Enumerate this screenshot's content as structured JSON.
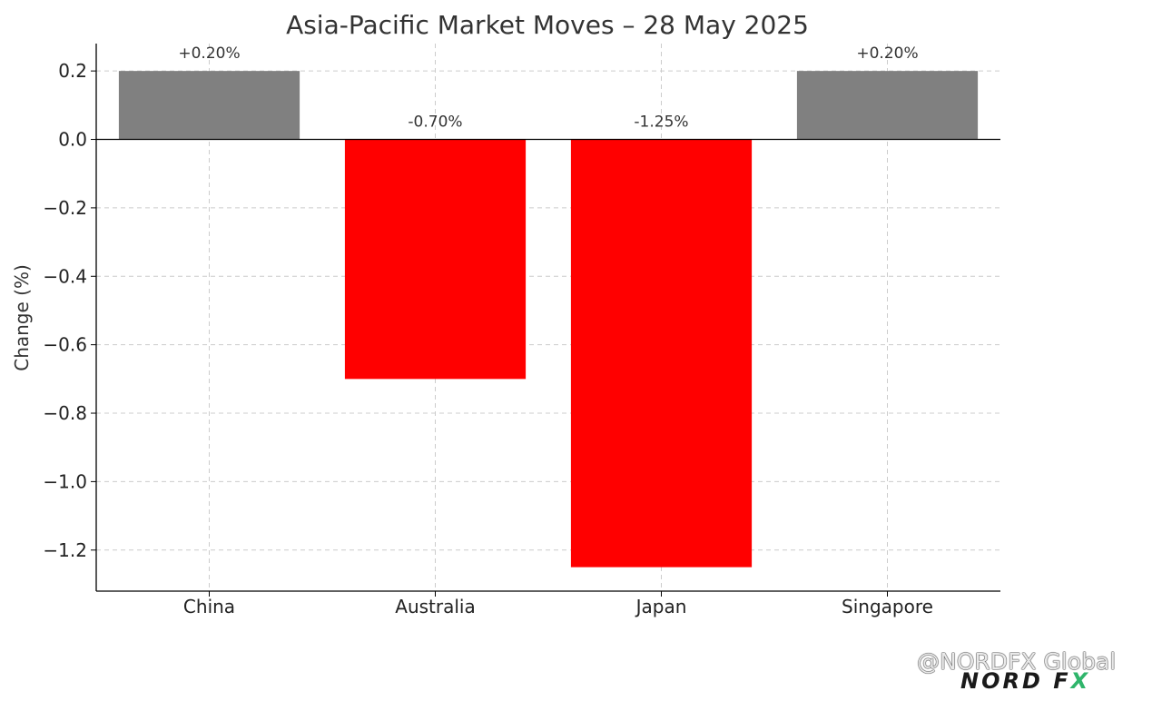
{
  "chart_data": {
    "type": "bar",
    "title": "Asia-Pacific Market Moves – 28 May 2025",
    "xlabel": "",
    "ylabel": "Change (%)",
    "categories": [
      "China",
      "Australia",
      "Japan",
      "Singapore"
    ],
    "values": [
      0.2,
      -0.7,
      -1.25,
      0.2
    ],
    "data_labels": [
      "+0.20%",
      "-0.70%",
      "-1.25%",
      "+0.20%"
    ],
    "colors": [
      "#808080",
      "#ff0000",
      "#ff0000",
      "#808080"
    ],
    "ylim": [
      -1.32,
      0.28
    ],
    "yticks": [
      0.2,
      0.0,
      -0.2,
      -0.4,
      -0.6,
      -0.8,
      -1.0,
      -1.2
    ],
    "ytick_labels": [
      "0.2",
      "0.0",
      "−0.2",
      "−0.4",
      "−0.6",
      "−0.8",
      "−1.0",
      "−1.2"
    ],
    "grid": true
  },
  "watermark": {
    "text": "@NORDFX Global",
    "logo_nord": "NORD F",
    "logo_x": "X"
  }
}
